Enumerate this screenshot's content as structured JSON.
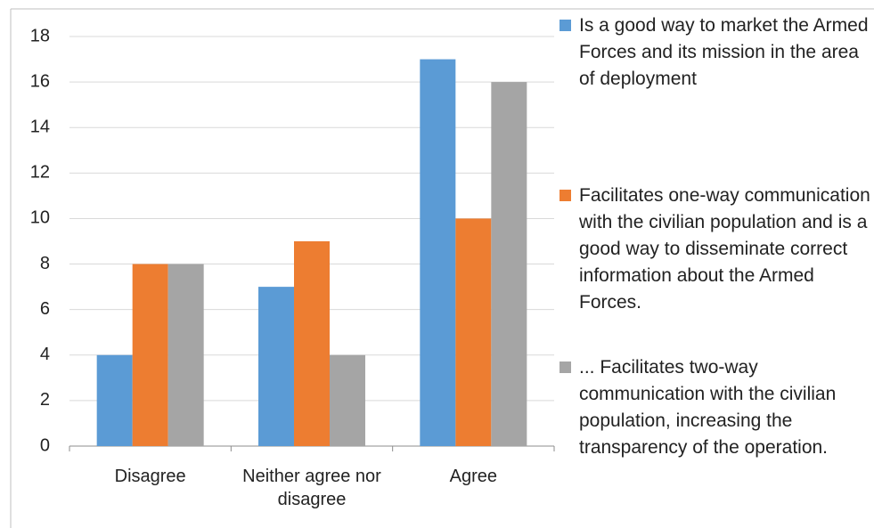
{
  "chart_data": {
    "type": "bar",
    "categories": [
      "Disagree",
      "Neither agree nor disagree",
      "Agree"
    ],
    "series": [
      {
        "name": "Is a good way to market the Armed Forces and its mission in the area of deployment",
        "color": "#5b9bd5",
        "values": [
          4,
          7,
          17
        ]
      },
      {
        "name": "Facilitates one-way communication with the civilian population and is a good way to disseminate correct information about the Armed Forces.",
        "color": "#ed7d31",
        "values": [
          8,
          9,
          10
        ]
      },
      {
        "name": "... Facilitates two-way communication with the civilian population, increasing the transparency of the operation.",
        "color": "#a5a5a5",
        "values": [
          8,
          4,
          16
        ]
      }
    ],
    "ylim": [
      0,
      18
    ],
    "yticks": [
      0,
      2,
      4,
      6,
      8,
      10,
      12,
      14,
      16,
      18
    ],
    "grid": true,
    "legend": "right"
  }
}
